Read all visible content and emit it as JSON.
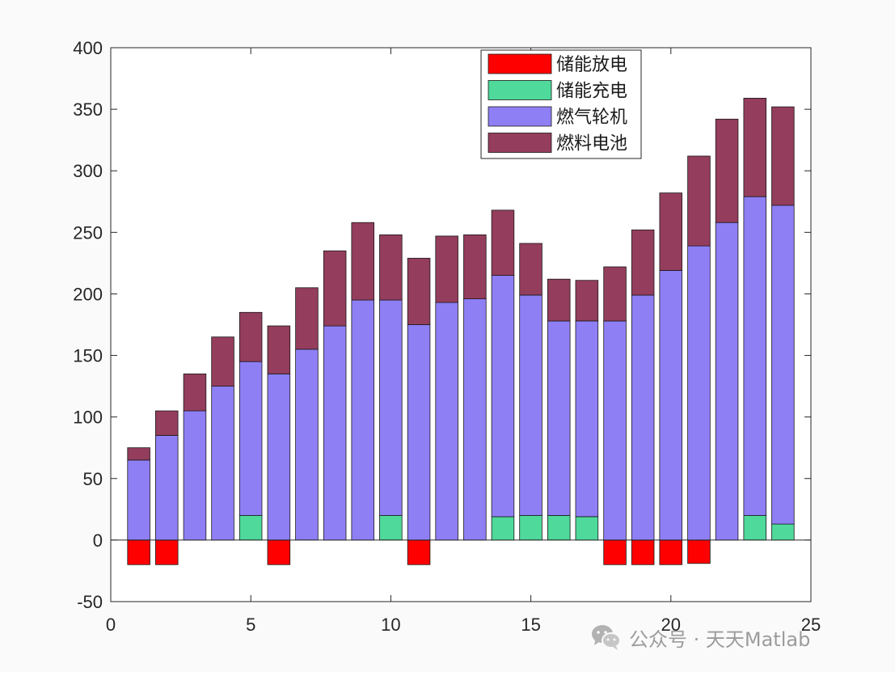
{
  "chart_data": {
    "type": "bar",
    "stacked": true,
    "title": "",
    "xlabel": "",
    "ylabel": "",
    "xlim": [
      0,
      25
    ],
    "ylim": [
      -50,
      400
    ],
    "xticks": [
      "0",
      "5",
      "10",
      "15",
      "20",
      "25"
    ],
    "yticks": [
      "-50",
      "0",
      "50",
      "100",
      "150",
      "200",
      "250",
      "300",
      "350",
      "400"
    ],
    "grid": false,
    "legend_position": "top-right",
    "x": [
      1,
      2,
      3,
      4,
      5,
      6,
      7,
      8,
      9,
      10,
      11,
      12,
      13,
      14,
      15,
      16,
      17,
      18,
      19,
      20,
      21,
      22,
      23,
      24
    ],
    "series": [
      {
        "name": "储能放电",
        "color": "#ff0000",
        "values": [
          -20,
          -20,
          0,
          0,
          0,
          -20,
          0,
          0,
          0,
          0,
          -20,
          0,
          0,
          0,
          0,
          0,
          0,
          -20,
          -20,
          -20,
          -19,
          0,
          0,
          0
        ]
      },
      {
        "name": "储能充电",
        "color": "#4fd99b",
        "values": [
          0,
          0,
          0,
          0,
          20,
          0,
          0,
          0,
          0,
          20,
          0,
          0,
          0,
          19,
          20,
          20,
          19,
          0,
          0,
          0,
          0,
          0,
          20,
          13
        ]
      },
      {
        "name": "燃气轮机",
        "color": "#8f7ff5",
        "values": [
          65,
          85,
          105,
          125,
          125,
          135,
          155,
          174,
          195,
          175,
          175,
          193,
          196,
          196,
          179,
          158,
          159,
          178,
          199,
          219,
          239,
          258,
          259,
          259
        ]
      },
      {
        "name": "燃料电池",
        "color": "#943d5c",
        "values": [
          10,
          20,
          30,
          40,
          40,
          39,
          50,
          61,
          63,
          53,
          54,
          54,
          52,
          53,
          42,
          34,
          33,
          44,
          53,
          63,
          73,
          84,
          80,
          80
        ]
      }
    ]
  },
  "watermark": {
    "icon": "wechat-icon",
    "text": "公众号 · 天天Matlab"
  }
}
